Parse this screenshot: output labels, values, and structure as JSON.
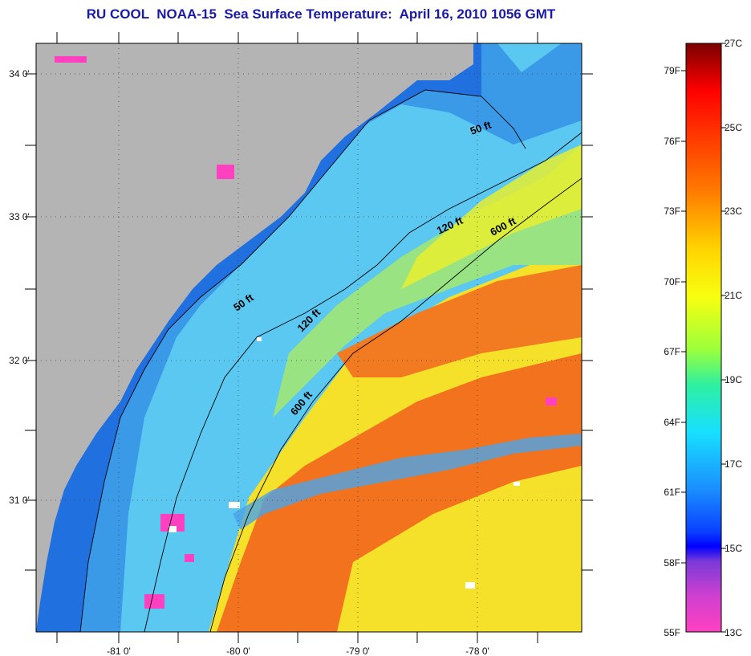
{
  "title": "RU COOL  NOAA-15  Sea Surface Temperature:  April 16, 2010 1056 GMT",
  "map": {
    "lat_labels": [
      "34 0'",
      "33 0'",
      "32 0'",
      "31 0'"
    ],
    "lon_labels": [
      "-81 0'",
      "-80 0'",
      "-79 0'",
      "-78 0'"
    ],
    "contours": {
      "c50_a": "50 ft",
      "c50_b": "50 ft",
      "c120_a": "120 ft",
      "c120_b": "120 ft",
      "c600_a": "600 ft",
      "c600_b": "600 ft"
    },
    "colors": {
      "land": "#b4b4b4",
      "coast_cold": "#1f6be0",
      "shelf": "#5ac8f0",
      "warm": "#f26a1c",
      "mid": "#f5e31e"
    }
  },
  "colorbar": {
    "fahrenheit": [
      "79F",
      "76F",
      "73F",
      "70F",
      "67F",
      "64F",
      "61F",
      "58F",
      "55F"
    ],
    "celsius": [
      "27C",
      "25C",
      "23C",
      "21C",
      "19C",
      "17C",
      "15C",
      "13C"
    ],
    "stops": [
      "#8b0000",
      "#ff0000",
      "#ff6a00",
      "#ffd000",
      "#ffff00",
      "#9cff3c",
      "#20e0c0",
      "#1ec8ff",
      "#1070ff",
      "#0000ff",
      "#8020e0",
      "#ff40c0"
    ]
  }
}
